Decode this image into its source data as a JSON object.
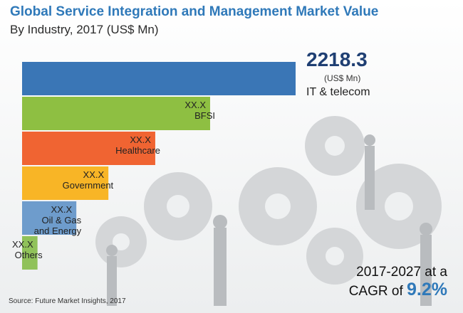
{
  "header": {
    "title": "Global Service Integration and Management Market Value",
    "subtitle": "By Industry, 2017 (US$ Mn)"
  },
  "highlight": {
    "value": "2218.3",
    "unit": "(US$ Mn)",
    "name": "IT & telecom"
  },
  "cagr": {
    "line1": "2017-2027 at a",
    "prefix": "CAGR of",
    "value": "9.2%"
  },
  "source": "Source: Future Market Insights, 2017",
  "colors": {
    "title": "#2f79b9",
    "highlight": "#1f3f73"
  },
  "chart_data": {
    "type": "bar",
    "orientation": "horizontal",
    "title": "Global Service Integration and Management Market Value",
    "subtitle": "By Industry, 2017 (US$ Mn)",
    "categories": [
      "IT & telecom",
      "BFSI",
      "Healthcare",
      "Government",
      "Oil & Gas and Energy",
      "Others"
    ],
    "values": [
      2218.3,
      null,
      null,
      null,
      null,
      null
    ],
    "bars": [
      {
        "label": "IT & telecom",
        "value": 2218.3,
        "value_label": "2218.3",
        "color": "#3a76b6"
      },
      {
        "label": "BFSI",
        "value": 1525,
        "value_label": "XX.X",
        "color": "#8ebf42",
        "label_lines": [
          "BFSI"
        ]
      },
      {
        "label": "Healthcare",
        "value": 1080,
        "value_label": "XX.X",
        "color": "#f06432",
        "label_lines": [
          "Healthcare"
        ]
      },
      {
        "label": "Government",
        "value": 700,
        "value_label": "XX.X",
        "color": "#f8b526",
        "label_lines": [
          "Government"
        ]
      },
      {
        "label": "Oil & Gas and Energy",
        "value": 440,
        "value_label": "XX.X",
        "color": "#6e9ccc",
        "label_lines": [
          "Oil & Gas",
          "and Energy"
        ]
      },
      {
        "label": "Others",
        "value": 125,
        "value_label": "XX.X",
        "color": "#90c25a",
        "label_lines": [
          "Others"
        ]
      }
    ],
    "xlim": [
      0,
      2218.3
    ],
    "grid": false,
    "legend": "none"
  }
}
